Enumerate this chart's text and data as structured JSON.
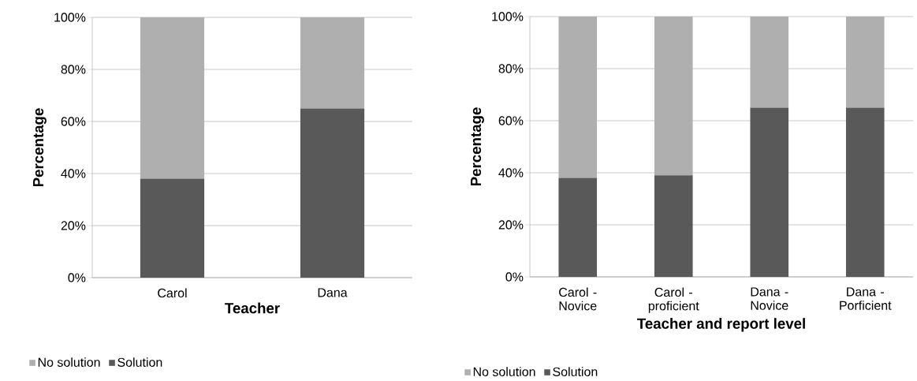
{
  "chart_data": [
    {
      "type": "bar",
      "stacked": true,
      "categories": [
        "Carol",
        "Dana"
      ],
      "xlabel": "Teacher",
      "ylabel": "Percentage",
      "series": [
        {
          "name": "Solution",
          "color": "#595959",
          "values": [
            38,
            65
          ]
        },
        {
          "name": "No solution",
          "color": "#afafaf",
          "values": [
            62,
            35
          ]
        }
      ],
      "ylim": [
        0,
        100
      ],
      "yticks": [
        {
          "value": 0,
          "label": "0%"
        },
        {
          "value": 20,
          "label": "20%"
        },
        {
          "value": 40,
          "label": "40%"
        },
        {
          "value": 60,
          "label": "60%"
        },
        {
          "value": 80,
          "label": "80%"
        },
        {
          "value": 100,
          "label": "100%"
        }
      ],
      "grid": "y",
      "legend": "bottom"
    },
    {
      "type": "bar",
      "stacked": true,
      "categories": [
        "Carol - Novice",
        "Carol - proficient",
        "Dana - Novice",
        "Dana - Porficient"
      ],
      "xlabel": "Teacher and report level",
      "ylabel": "Percentage",
      "series": [
        {
          "name": "Solution",
          "color": "#595959",
          "values": [
            38,
            39,
            65,
            65
          ]
        },
        {
          "name": "No solution",
          "color": "#afafaf",
          "values": [
            62,
            61,
            35,
            35
          ]
        }
      ],
      "ylim": [
        0,
        100
      ],
      "yticks": [
        {
          "value": 0,
          "label": "0%"
        },
        {
          "value": 20,
          "label": "20%"
        },
        {
          "value": 40,
          "label": "40%"
        },
        {
          "value": 60,
          "label": "60%"
        },
        {
          "value": 80,
          "label": "80%"
        },
        {
          "value": 100,
          "label": "100%"
        }
      ],
      "grid": "y",
      "legend": "bottom"
    }
  ]
}
